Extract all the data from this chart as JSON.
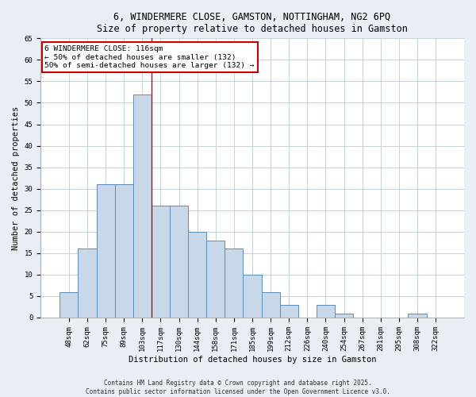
{
  "title": "6, WINDERMERE CLOSE, GAMSTON, NOTTINGHAM, NG2 6PQ",
  "subtitle": "Size of property relative to detached houses in Gamston",
  "xlabel": "Distribution of detached houses by size in Gamston",
  "ylabel": "Number of detached properties",
  "bar_color": "#c8d8e8",
  "bar_edge_color": "#5b8db8",
  "categories": [
    "48sqm",
    "62sqm",
    "75sqm",
    "89sqm",
    "103sqm",
    "117sqm",
    "130sqm",
    "144sqm",
    "158sqm",
    "171sqm",
    "185sqm",
    "199sqm",
    "212sqm",
    "226sqm",
    "240sqm",
    "254sqm",
    "267sqm",
    "281sqm",
    "295sqm",
    "308sqm",
    "322sqm"
  ],
  "values": [
    6,
    16,
    31,
    31,
    52,
    26,
    26,
    20,
    18,
    16,
    10,
    6,
    3,
    0,
    3,
    1,
    0,
    0,
    0,
    1,
    0
  ],
  "ylim": [
    0,
    65
  ],
  "yticks": [
    0,
    5,
    10,
    15,
    20,
    25,
    30,
    35,
    40,
    45,
    50,
    55,
    60,
    65
  ],
  "marker_bar_index": 5,
  "annotation_line1": "6 WINDERMERE CLOSE: 116sqm",
  "annotation_line2": "← 50% of detached houses are smaller (132)",
  "annotation_line3": "50% of semi-detached houses are larger (132) →",
  "annotation_box_color": "#ffffff",
  "annotation_border_color": "#cc0000",
  "footer_line1": "Contains HM Land Registry data © Crown copyright and database right 2025.",
  "footer_line2": "Contains public sector information licensed under the Open Government Licence v3.0.",
  "bg_color": "#e8eef4",
  "plot_bg_color": "#ffffff",
  "grid_color": "#c0ccd8",
  "title_fontsize": 8.5,
  "tick_fontsize": 6.5,
  "label_fontsize": 7.5,
  "annotation_fontsize": 6.8,
  "footer_fontsize": 5.5
}
